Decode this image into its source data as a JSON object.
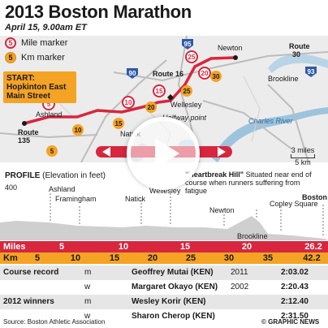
{
  "title": "2013 Boston Marathon",
  "date": "April 15, 9.00am ET",
  "legend": {
    "mile_number": "5",
    "mile_label": "Mile marker",
    "km_number": "5",
    "km_label": "Km marker"
  },
  "start": "START: Hopkinton East Main Street",
  "places": {
    "ashland": "Ashland",
    "natick": "Natick",
    "wellesley": "Wellesley",
    "halfway": "Halfway point",
    "newton": "Newton",
    "brookline": "Brookline",
    "charles_river": "Charles River",
    "route135": "Route\n135",
    "route16": "Route 16",
    "route30": "Route\n30"
  },
  "highways": [
    "95",
    "90",
    "93"
  ],
  "mile_markers": [
    "5",
    "10",
    "15",
    "20",
    "25"
  ],
  "km_markers": [
    "5",
    "10",
    "15",
    "20",
    "25",
    "30"
  ],
  "scale": "3 miles\n5 km",
  "profile": {
    "label_bold": "PROFILE",
    "label_rest": "(Elevation in feet)",
    "y_top": "400",
    "y_bottom": "0",
    "heartbreak_title": "\"Heartbreak Hill\"",
    "heartbreak_text": "Situated near end of course when runners suffering from fatigue",
    "points": [
      "Ashland",
      "Framingham",
      "Natick",
      "Wellesley",
      "Newton",
      "Brookline",
      "Copley Square"
    ],
    "finish": "Boston"
  },
  "miles": {
    "label": "Miles",
    "ticks": [
      "5",
      "10",
      "15",
      "20",
      "26.2"
    ]
  },
  "km": {
    "label": "Km",
    "ticks": [
      "5",
      "10",
      "15",
      "20",
      "25",
      "30",
      "35",
      "42.2"
    ]
  },
  "records": [
    {
      "category": "Course record",
      "sex": "m",
      "name": "Geoffrey Mutai (KEN)",
      "year": "2011",
      "time": "2:03.02"
    },
    {
      "category": "",
      "sex": "w",
      "name": "Margaret Okayo (KEN)",
      "year": "2002",
      "time": "2:20.43"
    },
    {
      "category": "2012 winners",
      "sex": "m",
      "name": "Wesley Korir (KEN)",
      "year": "",
      "time": "2:12.40"
    },
    {
      "category": "",
      "sex": "w",
      "name": "Sharon Cherop (KEN)",
      "year": "",
      "time": "2:31.50"
    }
  ],
  "source": "Source: Boston Athletic Association",
  "credit": "© GRAPHIC NEWS",
  "colors": {
    "route_red": "#d7263d",
    "km_orange": "#f4a325",
    "water_blue": "#9dc3dd",
    "road_grey": "#bfbfbf"
  }
}
